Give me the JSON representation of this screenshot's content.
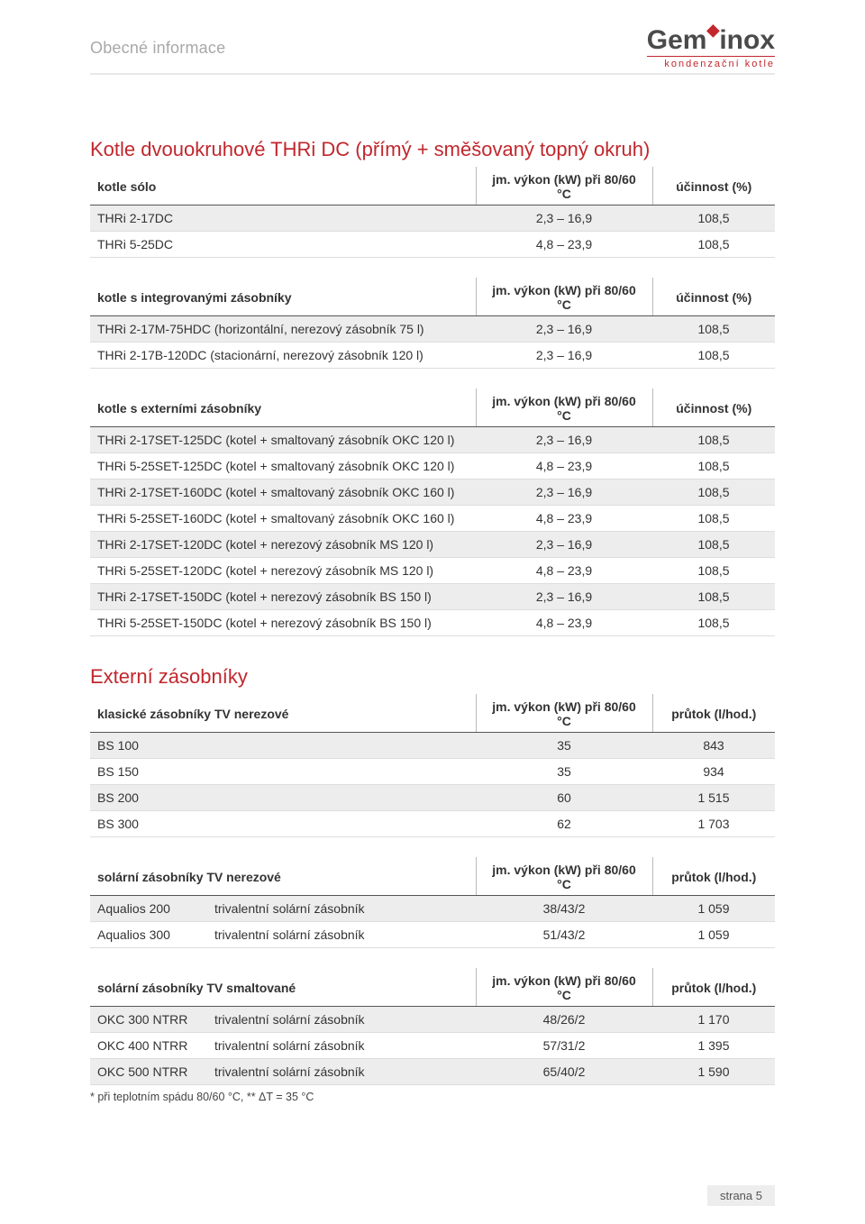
{
  "header": {
    "title": "Obecné informace",
    "logo_brand_1": "Gem",
    "logo_brand_2": "inox",
    "logo_tag": "kondenzační kotle"
  },
  "section1": {
    "title": "Kotle dvouokruhové THRi DC (přímý + směšovaný topný okruh)",
    "t1": {
      "h_label": "kotle sólo",
      "h_mid": "jm. výkon (kW) při 80/60 °C",
      "h_right": "účinnost (%)",
      "rows": [
        {
          "label": "THRi 2-17DC",
          "mid": "2,3 – 16,9",
          "right": "108,5"
        },
        {
          "label": "THRi 5-25DC",
          "mid": "4,8 – 23,9",
          "right": "108,5"
        }
      ]
    },
    "t2": {
      "h_label": "kotle s integrovanými zásobníky",
      "h_mid": "jm. výkon (kW) při 80/60 °C",
      "h_right": "účinnost (%)",
      "rows": [
        {
          "label": "THRi 2-17M-75HDC (horizontální, nerezový zásobník 75 l)",
          "mid": "2,3 – 16,9",
          "right": "108,5"
        },
        {
          "label": "THRi 2-17B-120DC (stacionární, nerezový zásobník 120 l)",
          "mid": "2,3 – 16,9",
          "right": "108,5"
        }
      ]
    },
    "t3": {
      "h_label": "kotle s externími zásobníky",
      "h_mid": "jm. výkon (kW) při 80/60 °C",
      "h_right": "účinnost (%)",
      "rows": [
        {
          "label": "THRi 2-17SET-125DC (kotel + smaltovaný zásobník OKC 120 l)",
          "mid": "2,3 – 16,9",
          "right": "108,5"
        },
        {
          "label": "THRi 5-25SET-125DC (kotel + smaltovaný zásobník OKC 120 l)",
          "mid": "4,8 – 23,9",
          "right": "108,5"
        },
        {
          "label": "THRi 2-17SET-160DC (kotel + smaltovaný zásobník OKC 160 l)",
          "mid": "2,3 – 16,9",
          "right": "108,5"
        },
        {
          "label": "THRi 5-25SET-160DC (kotel + smaltovaný zásobník OKC 160 l)",
          "mid": "4,8 – 23,9",
          "right": "108,5"
        },
        {
          "label": "THRi 2-17SET-120DC (kotel + nerezový zásobník MS 120 l)",
          "mid": "2,3 – 16,9",
          "right": "108,5"
        },
        {
          "label": "THRi 5-25SET-120DC (kotel + nerezový zásobník MS 120 l)",
          "mid": "4,8 – 23,9",
          "right": "108,5"
        },
        {
          "label": "THRi 2-17SET-150DC (kotel + nerezový zásobník BS 150 l)",
          "mid": "2,3 – 16,9",
          "right": "108,5"
        },
        {
          "label": "THRi 5-25SET-150DC (kotel + nerezový zásobník BS 150 l)",
          "mid": "4,8 – 23,9",
          "right": "108,5"
        }
      ]
    }
  },
  "section2": {
    "title": "Externí zásobníky",
    "t1": {
      "h_label": "klasické zásobníky TV nerezové",
      "h_mid": "jm. výkon (kW) při 80/60 °C",
      "h_right": "průtok (l/hod.)",
      "rows": [
        {
          "label": "BS 100",
          "mid": "35",
          "right": "843"
        },
        {
          "label": "BS 150",
          "mid": "35",
          "right": "934"
        },
        {
          "label": "BS 200",
          "mid": "60",
          "right": "1 515"
        },
        {
          "label": "BS 300",
          "mid": "62",
          "right": "1 703"
        }
      ]
    },
    "t2": {
      "h_label": "solární zásobníky TV nerezové",
      "h_mid": "jm. výkon (kW) při 80/60 °C",
      "h_right": "průtok (l/hod.)",
      "rows": [
        {
          "label": "Aqualios 200",
          "sub": "trivalentní solární zásobník",
          "mid": "38/43/2",
          "right": "1 059"
        },
        {
          "label": "Aqualios 300",
          "sub": "trivalentní solární zásobník",
          "mid": "51/43/2",
          "right": "1 059"
        }
      ]
    },
    "t3": {
      "h_label": "solární zásobníky TV smaltované",
      "h_mid": "jm. výkon (kW) při 80/60 °C",
      "h_right": "průtok (l/hod.)",
      "rows": [
        {
          "label": "OKC 300 NTRR",
          "sub": "trivalentní solární zásobník",
          "mid": "48/26/2",
          "right": "1 170"
        },
        {
          "label": "OKC 400 NTRR",
          "sub": "trivalentní solární zásobník",
          "mid": "57/31/2",
          "right": "1 395"
        },
        {
          "label": "OKC 500 NTRR",
          "sub": "trivalentní solární zásobník",
          "mid": "65/40/2",
          "right": "1 590"
        }
      ]
    },
    "footnote": "*  při teplotním spádu 80/60 °C, **  ΔT = 35 °C"
  },
  "footer": {
    "page": "strana 5"
  }
}
